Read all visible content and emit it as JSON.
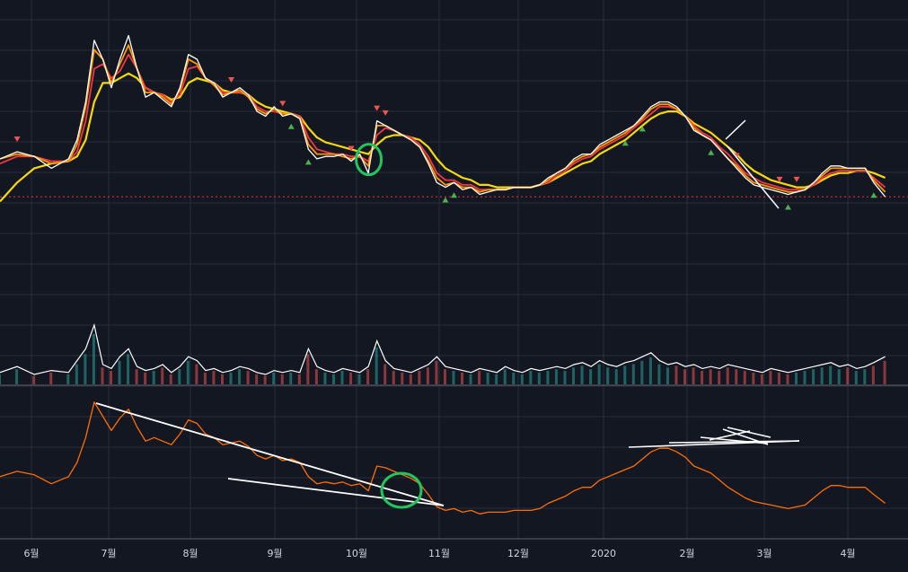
{
  "colors": {
    "background": "#131722",
    "grid": "#2a2e39",
    "price": "#ffffff",
    "ma_short": "#ff9800",
    "ma_mid": "#f23645",
    "ma_long": "#f5d90a",
    "volume": "#ffffff",
    "volume_up": "#26a69a",
    "volume_down": "#ef5350",
    "indicator": "#ff6d00",
    "current_price_line": "#f23645",
    "trendline": "#ffffff",
    "highlight_marker": "#22c55e",
    "signal_up": "#4caf50",
    "signal_down": "#ef5350"
  },
  "chart_data": [
    {
      "type": "line",
      "panel": "price",
      "x_labels": [
        "6월",
        "7월",
        "8월",
        "9월",
        "10월",
        "11월",
        "12월",
        "2020",
        "2월",
        "3월",
        "4월"
      ],
      "x": [
        0,
        6,
        12,
        18,
        24,
        27,
        30,
        33,
        36,
        39,
        42,
        45,
        48,
        51,
        54,
        57,
        60,
        63,
        66,
        69,
        72,
        75,
        78,
        81,
        84,
        87,
        90,
        93,
        96,
        99,
        102,
        105,
        108,
        111,
        114,
        117,
        120,
        123,
        126,
        129,
        132,
        135,
        138,
        141,
        144,
        147,
        150,
        153,
        156,
        159,
        162,
        165,
        168,
        171,
        174,
        177,
        180,
        183,
        186,
        189,
        192,
        195,
        198,
        201,
        204,
        207,
        210,
        213,
        216,
        219,
        222,
        225,
        228,
        231,
        234,
        237,
        240,
        243,
        246,
        249,
        252,
        255,
        258,
        261,
        264,
        267,
        270,
        273,
        276,
        279,
        282,
        285,
        288,
        291,
        294,
        297,
        300,
        303,
        306,
        310
      ],
      "series": [
        {
          "role": "price",
          "values": [
            28,
            31,
            29,
            24,
            28,
            36,
            52,
            78,
            70,
            58,
            70,
            80,
            66,
            54,
            56,
            53,
            50,
            58,
            72,
            70,
            62,
            60,
            54,
            56,
            58,
            55,
            48,
            46,
            50,
            46,
            47,
            45,
            32,
            28,
            29,
            29,
            30,
            27,
            30,
            22,
            44,
            42,
            40,
            38,
            36,
            33,
            26,
            18,
            16,
            18,
            15,
            16,
            13,
            14,
            15,
            15,
            16,
            16,
            16,
            17,
            20,
            22,
            24,
            28,
            30,
            30,
            34,
            36,
            38,
            40,
            42,
            46,
            50,
            52,
            52,
            50,
            46,
            40,
            38,
            36,
            32,
            28,
            24,
            20,
            17,
            16,
            15,
            14,
            13,
            14,
            15,
            18,
            22,
            25,
            25,
            24,
            24,
            24,
            18,
            12
          ]
        },
        {
          "role": "ma_short",
          "values": [
            28,
            30,
            29,
            26,
            27,
            34,
            50,
            74,
            70,
            60,
            68,
            76,
            66,
            56,
            56,
            54,
            51,
            57,
            70,
            68,
            62,
            59,
            55,
            56,
            57,
            54,
            49,
            47,
            49,
            47,
            47,
            45,
            34,
            30,
            30,
            30,
            29,
            28,
            29,
            25,
            42,
            42,
            40,
            38,
            36,
            33,
            27,
            20,
            17,
            18,
            16,
            16,
            14,
            15,
            15,
            15,
            16,
            16,
            16,
            17,
            19,
            22,
            24,
            27,
            29,
            30,
            33,
            35,
            37,
            39,
            42,
            45,
            49,
            51,
            51,
            49,
            46,
            41,
            38,
            36,
            32,
            28,
            25,
            21,
            18,
            17,
            16,
            15,
            14,
            14,
            15,
            18,
            21,
            24,
            24,
            24,
            24,
            24,
            19,
            14
          ]
        },
        {
          "role": "ma_mid",
          "values": [
            26,
            29,
            29,
            27,
            27,
            31,
            44,
            66,
            68,
            62,
            65,
            72,
            66,
            58,
            56,
            55,
            52,
            55,
            66,
            67,
            62,
            60,
            56,
            56,
            56,
            55,
            50,
            48,
            48,
            47,
            47,
            46,
            37,
            32,
            31,
            30,
            30,
            29,
            29,
            27,
            38,
            41,
            40,
            38,
            37,
            34,
            29,
            22,
            19,
            19,
            17,
            17,
            15,
            15,
            15,
            15,
            16,
            16,
            16,
            17,
            18,
            21,
            23,
            26,
            28,
            29,
            32,
            34,
            36,
            38,
            41,
            44,
            47,
            50,
            50,
            49,
            46,
            42,
            39,
            37,
            33,
            30,
            26,
            22,
            20,
            18,
            17,
            16,
            15,
            15,
            15,
            17,
            20,
            22,
            23,
            23,
            23,
            23,
            20,
            16
          ]
        },
        {
          "role": "ma_long",
          "values": [
            10,
            18,
            24,
            26,
            27,
            29,
            36,
            52,
            60,
            60,
            62,
            64,
            62,
            58,
            56,
            55,
            53,
            54,
            60,
            62,
            61,
            60,
            57,
            56,
            56,
            55,
            52,
            50,
            49,
            48,
            47,
            46,
            41,
            37,
            35,
            34,
            33,
            32,
            31,
            30,
            34,
            37,
            38,
            38,
            37,
            36,
            33,
            28,
            24,
            22,
            20,
            19,
            17,
            17,
            16,
            16,
            16,
            16,
            16,
            17,
            18,
            20,
            22,
            24,
            26,
            27,
            30,
            32,
            34,
            36,
            39,
            42,
            45,
            47,
            48,
            48,
            46,
            43,
            41,
            39,
            36,
            33,
            30,
            26,
            23,
            21,
            19,
            18,
            17,
            16,
            16,
            17,
            19,
            21,
            22,
            22,
            23,
            23,
            22,
            20
          ]
        }
      ],
      "ylim": [
        -30,
        95
      ],
      "grid": true,
      "current_price": 12,
      "signals_down_x": [
        6,
        81,
        99,
        123,
        132,
        135,
        258,
        273,
        279
      ],
      "signals_up_x": [
        102,
        108,
        156,
        159,
        219,
        225,
        249,
        276,
        306
      ],
      "highlight_x": 126
    },
    {
      "type": "line",
      "panel": "volume",
      "series": [
        {
          "role": "volume",
          "values": [
            6,
            9,
            5,
            7,
            6,
            12,
            18,
            30,
            10,
            8,
            14,
            18,
            9,
            7,
            8,
            10,
            6,
            9,
            14,
            12,
            7,
            8,
            6,
            7,
            9,
            8,
            6,
            5,
            7,
            6,
            7,
            6,
            18,
            9,
            7,
            6,
            8,
            7,
            6,
            9,
            22,
            12,
            8,
            7,
            6,
            8,
            10,
            14,
            9,
            8,
            7,
            6,
            8,
            7,
            6,
            9,
            7,
            6,
            8,
            7,
            8,
            9,
            8,
            10,
            11,
            9,
            12,
            10,
            9,
            11,
            12,
            14,
            16,
            12,
            10,
            11,
            9,
            10,
            8,
            9,
            8,
            10,
            9,
            8,
            7,
            6,
            8,
            7,
            6,
            7,
            8,
            9,
            10,
            11,
            9,
            10,
            8,
            9,
            11,
            14
          ]
        }
      ],
      "ylim": [
        0,
        40
      ]
    },
    {
      "type": "line",
      "panel": "indicator",
      "series": [
        {
          "role": "indicator",
          "values": [
            30,
            33,
            31,
            26,
            30,
            38,
            52,
            72,
            64,
            56,
            63,
            68,
            58,
            50,
            52,
            50,
            48,
            54,
            62,
            60,
            54,
            52,
            48,
            49,
            50,
            47,
            42,
            40,
            42,
            39,
            40,
            38,
            30,
            26,
            27,
            26,
            27,
            25,
            26,
            22,
            36,
            35,
            33,
            31,
            29,
            26,
            20,
            13,
            11,
            12,
            10,
            11,
            9,
            10,
            10,
            10,
            11,
            11,
            11,
            12,
            15,
            17,
            19,
            22,
            24,
            24,
            28,
            30,
            32,
            34,
            36,
            40,
            44,
            46,
            46,
            44,
            41,
            36,
            34,
            32,
            28,
            24,
            21,
            18,
            16,
            15,
            14,
            13,
            12,
            13,
            14,
            18,
            22,
            25,
            25,
            24,
            24,
            24,
            20,
            15
          ]
        }
      ],
      "ylim": [
        -5,
        80
      ]
    }
  ]
}
